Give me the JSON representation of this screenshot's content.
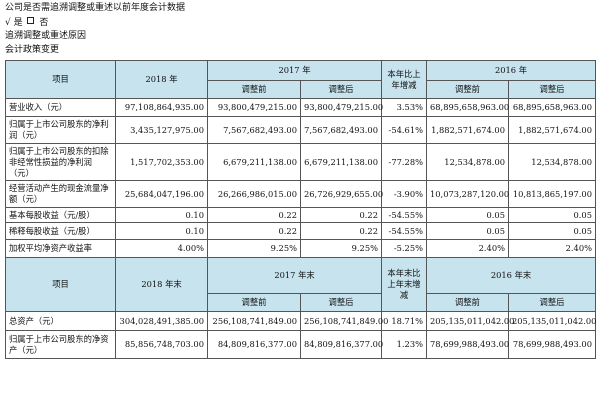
{
  "intro": {
    "question": "公司是否需追溯调整或重述以前年度会计数据",
    "answer_yes": "√ 是",
    "answer_no": "否",
    "reason_label": "追溯调整或重述原因",
    "reason": "会计政策变更"
  },
  "table1": {
    "h_item": "项目",
    "h_2018": "2018 年",
    "h_2017": "2017 年",
    "h_change": "本年比上年增减",
    "h_2016": "2016 年",
    "h_before": "调整前",
    "h_after": "调整后",
    "rows": [
      {
        "label": "营业收入（元）",
        "v2018": "97,108,864,935.00",
        "b2017": "93,800,479,215.00",
        "a2017": "93,800,479,215.00",
        "chg": "3.53%",
        "b2016": "68,895,658,963.00",
        "a2016": "68,895,658,963.00"
      },
      {
        "label": "归属于上市公司股东的净利润（元）",
        "v2018": "3,435,127,975.00",
        "b2017": "7,567,682,493.00",
        "a2017": "7,567,682,493.00",
        "chg": "-54.61%",
        "b2016": "1,882,571,674.00",
        "a2016": "1,882,571,674.00"
      },
      {
        "label": "归属于上市公司股东的扣除非经常性损益的净利润（元）",
        "v2018": "1,517,702,353.00",
        "b2017": "6,679,211,138.00",
        "a2017": "6,679,211,138.00",
        "chg": "-77.28%",
        "b2016": "12,534,878.00",
        "a2016": "12,534,878.00"
      },
      {
        "label": "经营活动产生的现金流量净额（元）",
        "v2018": "25,684,047,196.00",
        "b2017": "26,266,986,015.00",
        "a2017": "26,726,929,655.00",
        "chg": "-3.90%",
        "b2016": "10,073,287,120.00",
        "a2016": "10,813,865,197.00"
      },
      {
        "label": "基本每股收益（元/股）",
        "v2018": "0.10",
        "b2017": "0.22",
        "a2017": "0.22",
        "chg": "-54.55%",
        "b2016": "0.05",
        "a2016": "0.05"
      },
      {
        "label": "稀释每股收益（元/股）",
        "v2018": "0.10",
        "b2017": "0.22",
        "a2017": "0.22",
        "chg": "-54.55%",
        "b2016": "0.05",
        "a2016": "0.05"
      },
      {
        "label": "加权平均净资产收益率",
        "v2018": "4.00%",
        "b2017": "9.25%",
        "a2017": "9.25%",
        "chg": "-5.25%",
        "b2016": "2.40%",
        "a2016": "2.40%"
      }
    ]
  },
  "table2": {
    "h_item": "项目",
    "h_2018": "2018 年末",
    "h_2017": "2017 年末",
    "h_change": "本年末比上年末增减",
    "h_2016": "2016 年末",
    "h_before": "调整前",
    "h_after": "调整后",
    "rows": [
      {
        "label": "总资产（元）",
        "v2018": "304,028,491,385.00",
        "b2017": "256,108,741,849.00",
        "a2017": "256,108,741,849.00",
        "chg": "18.71%",
        "b2016": "205,135,011,042.00",
        "a2016": "205,135,011,042.00"
      },
      {
        "label": "归属于上市公司股东的净资产（元）",
        "v2018": "85,856,748,703.00",
        "b2017": "84,809,816,377.00",
        "a2017": "84,809,816,377.00",
        "chg": "1.23%",
        "b2016": "78,699,988,493.00",
        "a2016": "78,699,988,493.00"
      }
    ]
  }
}
